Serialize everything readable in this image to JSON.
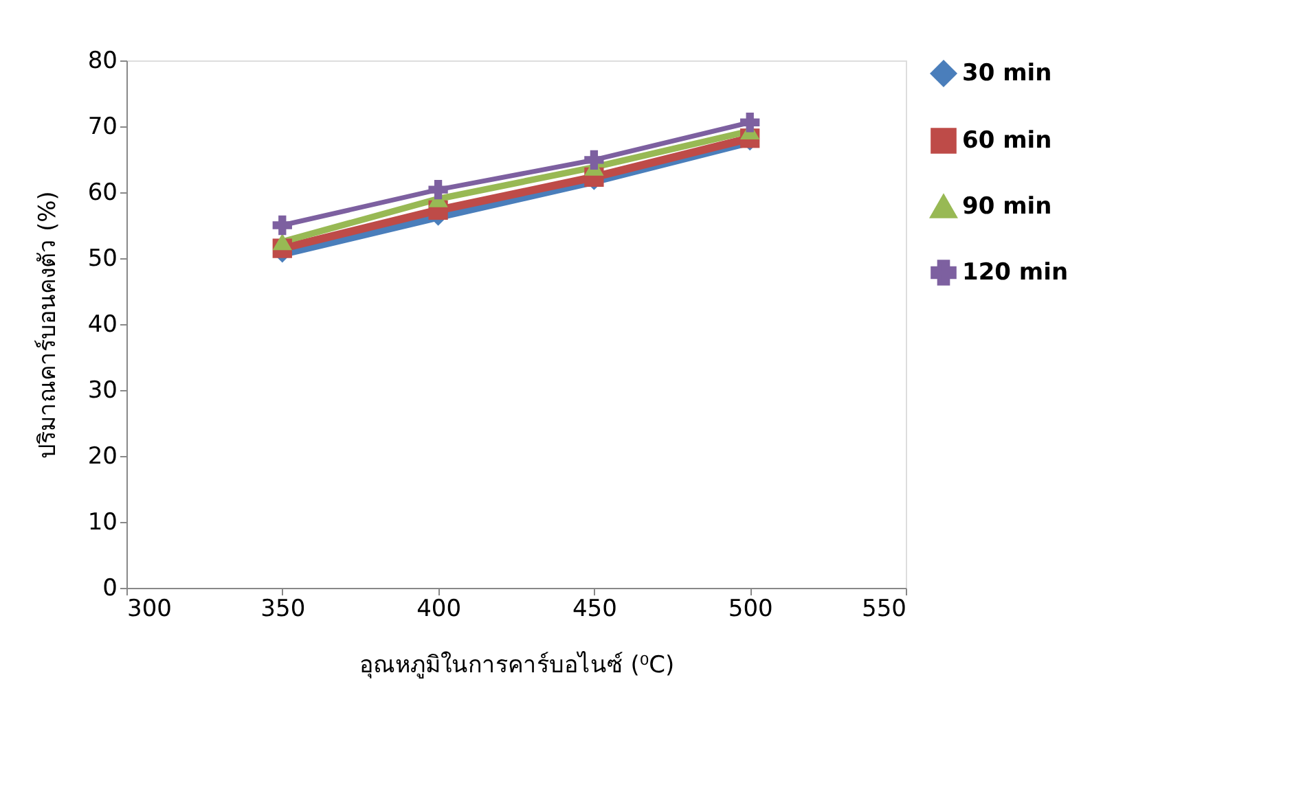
{
  "chart_data": {
    "type": "line",
    "xlabel": "อุณหภูมิในการคาร์บอไนซ์ (⁰C)",
    "ylabel": "ปริมาณคาร์บอนคงตัว (%)",
    "x": [
      350,
      400,
      450,
      500
    ],
    "series": [
      {
        "name": "30 min",
        "color": "#4a7ebb",
        "marker": "diamond",
        "values": [
          50.8,
          56.4,
          61.8,
          67.8
        ]
      },
      {
        "name": "60 min",
        "color": "#be4b48",
        "marker": "square",
        "values": [
          51.5,
          57.3,
          62.3,
          68.2
        ]
      },
      {
        "name": "90 min",
        "color": "#98b954",
        "marker": "triangle",
        "values": [
          52.5,
          59.0,
          63.8,
          69.3
        ]
      },
      {
        "name": "120 min",
        "color": "#7d60a0",
        "marker": "cross",
        "values": [
          55.0,
          60.4,
          64.9,
          70.6
        ]
      }
    ],
    "xlim": [
      300,
      550
    ],
    "xticks": [
      300,
      350,
      400,
      450,
      500,
      550
    ],
    "ylim": [
      0,
      80
    ],
    "yticks": [
      0,
      10,
      20,
      30,
      40,
      50,
      60,
      70,
      80
    ],
    "grid": false,
    "legend": "right",
    "line_style": "solid"
  }
}
